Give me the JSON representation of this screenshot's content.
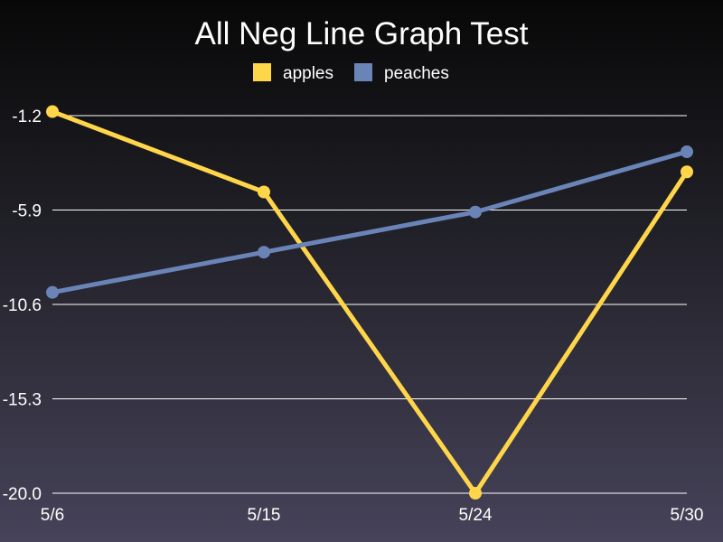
{
  "chart_data": {
    "type": "line",
    "title": "All Neg Line Graph Test",
    "categories": [
      "5/6",
      "5/15",
      "5/24",
      "5/30"
    ],
    "series": [
      {
        "name": "apples",
        "color": "#ffd64a",
        "values": [
          -1.0,
          -5.0,
          -20.0,
          -4.0
        ]
      },
      {
        "name": "peaches",
        "color": "#6a84b8",
        "values": [
          -10.0,
          -8.0,
          -6.0,
          -3.0
        ]
      }
    ],
    "yticks": [
      "-1.2",
      "-5.9",
      "-10.6",
      "-15.3",
      "-20.0"
    ],
    "ylim": [
      -20.0,
      -1.2
    ],
    "grid": true,
    "legend_position": "top"
  }
}
